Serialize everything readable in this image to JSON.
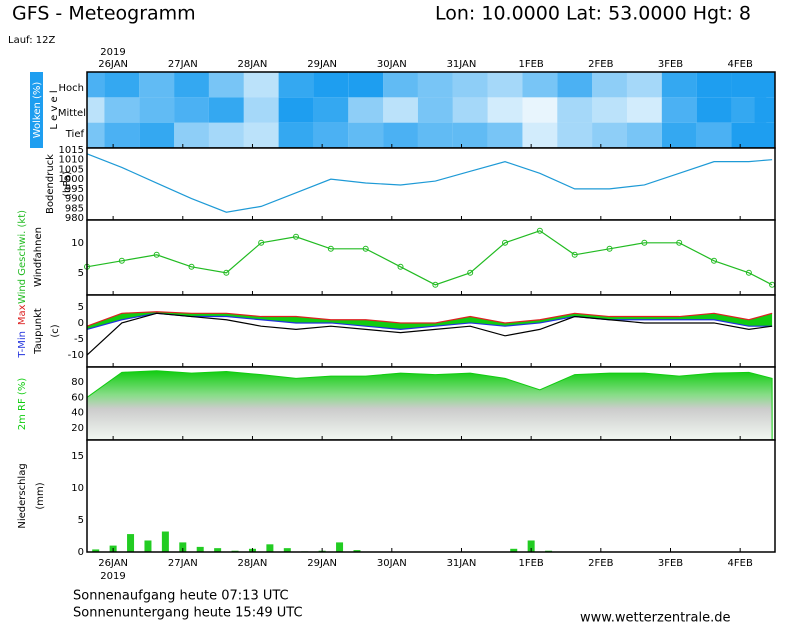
{
  "header": {
    "title": "GFS - Meteogramm",
    "location": "Lon: 10.0000 Lat: 53.0000 Hgt: 8",
    "run": "Lauf: 12Z",
    "year": "2019"
  },
  "footer": {
    "sunrise": "Sonnenaufgang heute 07:13 UTC",
    "sunset": "Sonnenuntergang heute 15:49 UTC",
    "source": "www.wetterzentrale.de"
  },
  "chart_data": [
    {
      "type": "heatmap",
      "ylabel": "Wolken (%)",
      "level_label": "L e v e l",
      "levels": [
        "Hoch",
        "Mittel",
        "Tief"
      ],
      "color": "#1e9ef0",
      "x": [
        0,
        12,
        24,
        36,
        48,
        60,
        72,
        84,
        96,
        108,
        120,
        132,
        144,
        156,
        168,
        180,
        192,
        204,
        216,
        228,
        236
      ],
      "xlim": [
        0,
        237
      ],
      "xticks": [
        {
          "value": 9,
          "label": "26JAN"
        },
        {
          "value": 33,
          "label": "27JAN"
        },
        {
          "value": 57,
          "label": "28JAN"
        },
        {
          "value": 81,
          "label": "29JAN"
        },
        {
          "value": 105,
          "label": "30JAN"
        },
        {
          "value": 129,
          "label": "31JAN"
        },
        {
          "value": 153,
          "label": "1FEB"
        },
        {
          "value": 177,
          "label": "2FEB"
        },
        {
          "value": 201,
          "label": "3FEB"
        },
        {
          "value": 225,
          "label": "4FEB"
        }
      ],
      "values": [
        [
          80,
          90,
          70,
          90,
          60,
          30,
          90,
          100,
          100,
          70,
          60,
          50,
          40,
          60,
          80,
          50,
          40,
          90,
          100,
          100,
          100
        ],
        [
          30,
          60,
          70,
          80,
          90,
          40,
          100,
          90,
          50,
          30,
          60,
          40,
          20,
          10,
          40,
          30,
          20,
          80,
          100,
          90,
          100
        ],
        [
          60,
          80,
          90,
          50,
          40,
          30,
          90,
          80,
          70,
          80,
          70,
          70,
          60,
          20,
          40,
          50,
          60,
          90,
          80,
          100,
          100
        ]
      ]
    },
    {
      "type": "line",
      "ylabel": [
        "Bodendruck",
        "(hPa)"
      ],
      "x": [
        0,
        12,
        24,
        36,
        48,
        60,
        72,
        84,
        96,
        108,
        120,
        132,
        144,
        156,
        168,
        180,
        192,
        204,
        216,
        228,
        236
      ],
      "xlim": [
        0,
        237
      ],
      "ylim": [
        979,
        1016
      ],
      "yticks": [
        980,
        985,
        990,
        995,
        1000,
        1005,
        1010,
        1015
      ],
      "series": [
        {
          "color": "#1e9ad6",
          "values": [
            1013,
            1006,
            998,
            990,
            983,
            986,
            993,
            1000,
            998,
            997,
            999,
            1004,
            1009,
            1003,
            995,
            995,
            997,
            1003,
            1009,
            1009,
            1010
          ]
        }
      ]
    },
    {
      "type": "line",
      "ylabel": [
        "Windfahnen"
      ],
      "markers": true,
      "x": [
        0,
        12,
        24,
        36,
        48,
        60,
        72,
        84,
        96,
        108,
        120,
        132,
        144,
        156,
        168,
        180,
        192,
        204,
        216,
        228,
        236
      ],
      "xlim": [
        0,
        237
      ],
      "ylim": [
        1.3,
        13.8
      ],
      "yticks": [
        5,
        10
      ],
      "series": [
        {
          "name": "Wind Geschwi. (kt)",
          "color": "#22bb22",
          "values": [
            6,
            7,
            8,
            6,
            5,
            10,
            11,
            9,
            9,
            6,
            3,
            5,
            10,
            12,
            8,
            9,
            10,
            10,
            7,
            5,
            3
          ]
        }
      ]
    },
    {
      "type": "line",
      "ylabel": [
        "(c)"
      ],
      "range_fill": "#11cc11",
      "x": [
        0,
        12,
        24,
        36,
        48,
        60,
        72,
        84,
        96,
        108,
        120,
        132,
        144,
        156,
        168,
        180,
        192,
        204,
        216,
        228,
        236
      ],
      "xlim": [
        0,
        237
      ],
      "ylim": [
        -13.7,
        8.7
      ],
      "yticks": [
        -10,
        -5,
        0,
        5
      ],
      "series": [
        {
          "name": "T-Min",
          "color": "#2233dd",
          "values": [
            -2,
            1,
            3,
            2,
            2,
            1,
            0,
            0,
            -1,
            -2,
            -1,
            0,
            -1,
            0,
            2,
            1,
            1,
            1,
            1,
            -1,
            -1
          ]
        },
        {
          "name": "Max",
          "color": "#dd2222",
          "values": [
            -1,
            3,
            3.5,
            3,
            3,
            2,
            2,
            1,
            1,
            0,
            0,
            2,
            0,
            1,
            3,
            2,
            2,
            2,
            3,
            1,
            3
          ]
        },
        {
          "name": "Taupunkt",
          "color": "#000000",
          "values": [
            -10,
            0,
            3,
            2,
            1,
            -1,
            -2,
            -1,
            -2,
            -3,
            -2,
            -1,
            -4,
            -2,
            2,
            1,
            0,
            0,
            0,
            -2,
            -1
          ]
        }
      ]
    },
    {
      "type": "area",
      "ylabel": [
        "2m RF (%)"
      ],
      "color": "#11cc11",
      "x": [
        0,
        12,
        24,
        36,
        48,
        60,
        72,
        84,
        96,
        108,
        120,
        132,
        144,
        156,
        168,
        180,
        192,
        204,
        216,
        228,
        236
      ],
      "xlim": [
        0,
        237
      ],
      "ylim": [
        4,
        100
      ],
      "yticks": [
        20,
        40,
        60,
        80
      ],
      "values": [
        60,
        93,
        95,
        92,
        94,
        90,
        85,
        88,
        88,
        92,
        90,
        92,
        85,
        70,
        90,
        92,
        92,
        88,
        92,
        93,
        85
      ]
    },
    {
      "type": "bar",
      "ylabel": [
        "Niederschlag",
        "(mm)"
      ],
      "color": "#22cc22",
      "x": [
        3,
        9,
        15,
        21,
        27,
        33,
        39,
        45,
        51,
        57,
        63,
        69,
        75,
        81,
        87,
        93,
        99,
        105,
        111,
        117,
        123,
        129,
        135,
        141,
        147,
        153,
        159,
        165,
        171,
        177,
        183,
        189,
        195,
        201,
        207,
        213,
        219,
        225,
        231,
        237
      ],
      "xlim": [
        0,
        237
      ],
      "ylim": [
        0,
        17.5
      ],
      "yticks": [
        0,
        5,
        10,
        15
      ],
      "values": [
        0.4,
        1.0,
        2.8,
        1.8,
        3.2,
        1.5,
        0.8,
        0.6,
        0.2,
        0.5,
        1.2,
        0.6,
        0.1,
        0.2,
        1.5,
        0.3,
        0,
        0,
        0,
        0,
        0,
        0,
        0,
        0,
        0.5,
        1.8,
        0.2,
        0,
        0,
        0,
        0,
        0,
        0,
        0,
        0,
        0,
        0,
        0,
        0,
        0
      ]
    }
  ]
}
